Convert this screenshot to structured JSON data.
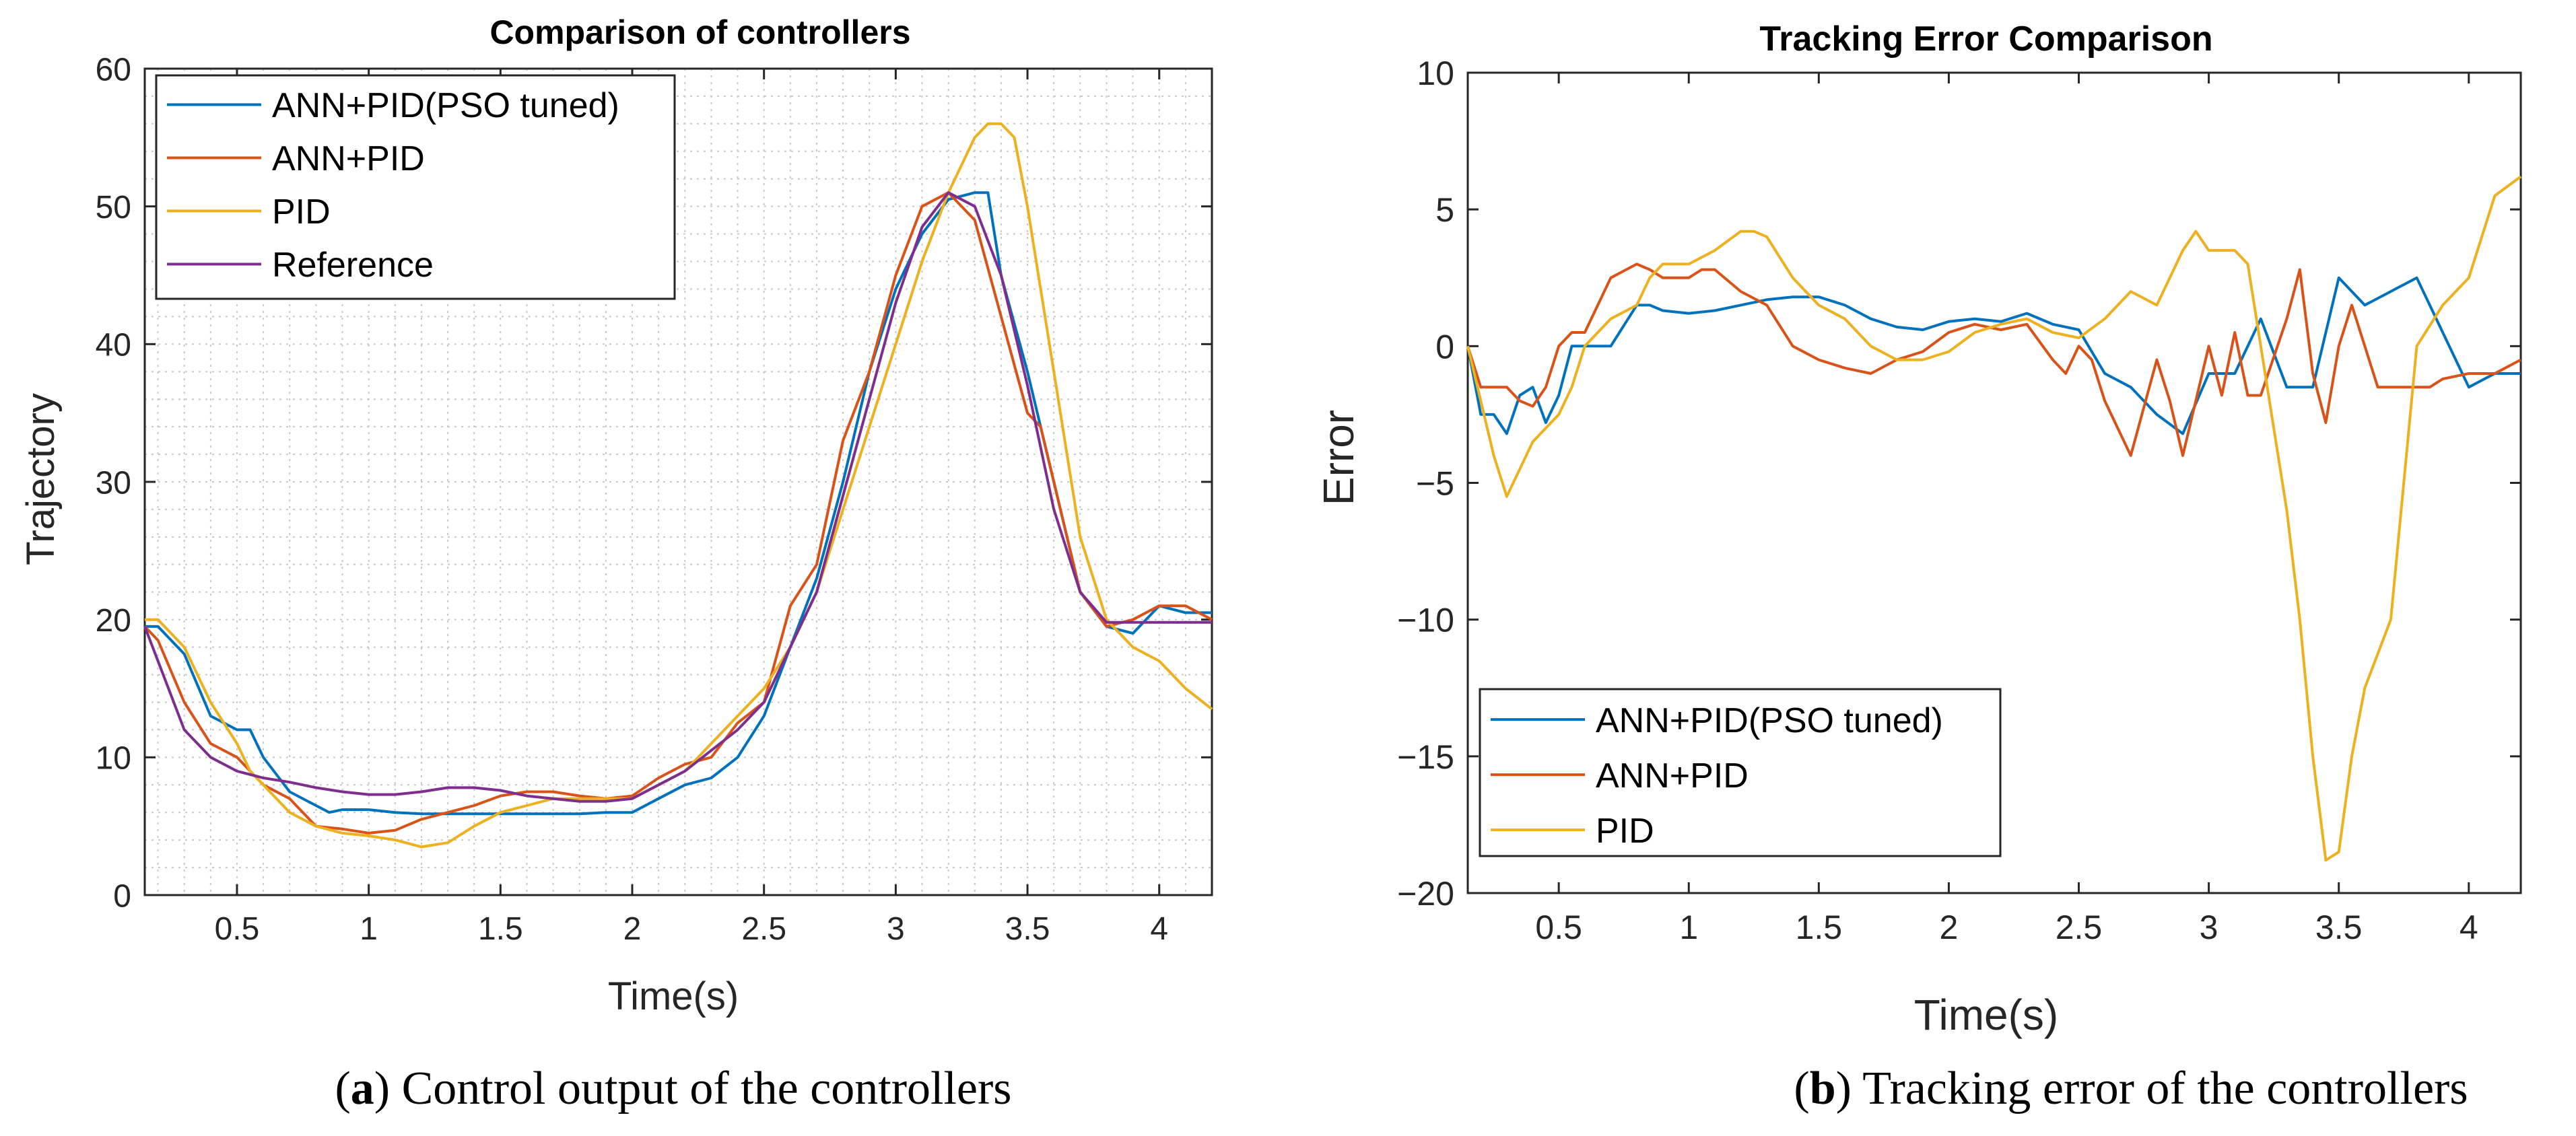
{
  "chart_data": [
    {
      "type": "line",
      "title": "Comparison of controllers",
      "xlabel": "Time(s)",
      "ylabel": "Trajectory",
      "xlim": [
        0.15,
        4.2
      ],
      "ylim": [
        0,
        60
      ],
      "xticks": [
        0.5,
        1,
        1.5,
        2,
        2.5,
        3,
        3.5,
        4
      ],
      "xtick_labels": [
        "0.5",
        "1",
        "1.5",
        "2",
        "2.5",
        "3",
        "3.5",
        "4"
      ],
      "yticks": [
        0,
        10,
        20,
        30,
        40,
        50,
        60
      ],
      "ytick_labels": [
        "0",
        "10",
        "20",
        "30",
        "40",
        "50",
        "60"
      ],
      "grid": "minor-dotted",
      "legend_position": "top-left",
      "caption_letter": "a",
      "caption_text": ") Control output of the controllers",
      "caption_open": "(",
      "series": [
        {
          "name": "ANN+PID(PSO tuned)",
          "color": "#0072BD",
          "x": [
            0.15,
            0.2,
            0.3,
            0.4,
            0.5,
            0.55,
            0.6,
            0.7,
            0.8,
            0.85,
            0.9,
            1.0,
            1.1,
            1.2,
            1.3,
            1.4,
            1.5,
            1.6,
            1.7,
            1.8,
            1.9,
            2.0,
            2.1,
            2.2,
            2.3,
            2.4,
            2.5,
            2.6,
            2.7,
            2.8,
            2.9,
            3.0,
            3.1,
            3.2,
            3.3,
            3.35,
            3.4,
            3.5,
            3.6,
            3.7,
            3.8,
            3.9,
            4.0,
            4.1,
            4.2
          ],
          "y": [
            19.5,
            19.5,
            17.5,
            13,
            12,
            12,
            10,
            7.5,
            6.5,
            6,
            6.2,
            6.2,
            6,
            5.9,
            5.9,
            5.9,
            5.9,
            5.9,
            5.9,
            5.9,
            6,
            6,
            7,
            8,
            8.5,
            10,
            13,
            18,
            23,
            30,
            38,
            44,
            48,
            50.5,
            51,
            51,
            45,
            38,
            30,
            22,
            19.5,
            19,
            21,
            20.5,
            20.5
          ]
        },
        {
          "name": "ANN+PID",
          "color": "#D95319",
          "x": [
            0.15,
            0.2,
            0.3,
            0.4,
            0.5,
            0.6,
            0.7,
            0.8,
            0.9,
            1.0,
            1.1,
            1.2,
            1.3,
            1.4,
            1.5,
            1.6,
            1.7,
            1.8,
            1.9,
            2.0,
            2.1,
            2.2,
            2.3,
            2.4,
            2.5,
            2.6,
            2.7,
            2.8,
            2.9,
            3.0,
            3.1,
            3.2,
            3.3,
            3.4,
            3.5,
            3.55,
            3.6,
            3.7,
            3.8,
            3.9,
            4.0,
            4.1,
            4.2
          ],
          "y": [
            19.5,
            18.5,
            14,
            11,
            10,
            8,
            7,
            5,
            4.8,
            4.5,
            4.7,
            5.5,
            6,
            6.5,
            7.2,
            7.5,
            7.5,
            7.2,
            7,
            7.2,
            8.5,
            9.5,
            10,
            12.5,
            14,
            21,
            24,
            33,
            38,
            45,
            50,
            51,
            49,
            42,
            35,
            34,
            30,
            22,
            19.5,
            20,
            21,
            21,
            20
          ]
        },
        {
          "name": "PID",
          "color": "#EDB120",
          "x": [
            0.15,
            0.2,
            0.3,
            0.4,
            0.5,
            0.55,
            0.6,
            0.7,
            0.8,
            0.9,
            1.0,
            1.1,
            1.2,
            1.3,
            1.4,
            1.5,
            1.6,
            1.7,
            1.8,
            1.9,
            2.0,
            2.1,
            2.2,
            2.3,
            2.4,
            2.5,
            2.6,
            2.7,
            2.8,
            2.9,
            3.0,
            3.1,
            3.2,
            3.3,
            3.35,
            3.4,
            3.45,
            3.5,
            3.6,
            3.7,
            3.8,
            3.9,
            4.0,
            4.1,
            4.2
          ],
          "y": [
            20,
            20,
            18,
            14,
            11,
            9,
            8,
            6,
            5,
            4.5,
            4.3,
            4,
            3.5,
            3.8,
            5,
            6,
            6.5,
            7,
            7,
            7,
            7,
            8,
            9,
            11,
            13,
            15,
            18,
            22,
            28,
            34,
            40,
            46,
            51,
            55,
            56,
            56,
            55,
            50,
            38,
            26,
            20,
            18,
            17,
            15,
            13.5
          ]
        },
        {
          "name": "Reference",
          "color": "#7E2F8E",
          "x": [
            0.15,
            0.2,
            0.3,
            0.4,
            0.5,
            0.6,
            0.7,
            0.8,
            0.9,
            1.0,
            1.1,
            1.2,
            1.3,
            1.4,
            1.5,
            1.6,
            1.7,
            1.8,
            1.9,
            2.0,
            2.1,
            2.2,
            2.3,
            2.4,
            2.5,
            2.6,
            2.7,
            2.8,
            2.9,
            3.0,
            3.1,
            3.2,
            3.3,
            3.4,
            3.5,
            3.6,
            3.7,
            3.8,
            3.9,
            4.0,
            4.1,
            4.2
          ],
          "y": [
            19.5,
            17,
            12,
            10,
            9,
            8.5,
            8.2,
            7.8,
            7.5,
            7.3,
            7.3,
            7.5,
            7.8,
            7.8,
            7.6,
            7.2,
            7,
            6.8,
            6.8,
            7,
            8,
            9,
            10.5,
            12,
            14,
            18,
            22,
            29,
            36,
            43,
            48.5,
            51,
            50,
            45,
            37,
            28,
            22,
            19.8,
            19.8,
            19.8,
            19.8,
            19.8
          ]
        }
      ]
    },
    {
      "type": "line",
      "title": "Tracking Error Comparison",
      "xlabel": "Time(s)",
      "ylabel": "Error",
      "xlim": [
        0.15,
        4.2
      ],
      "ylim": [
        -20,
        10
      ],
      "xticks": [
        0.5,
        1,
        1.5,
        2,
        2.5,
        3,
        3.5,
        4
      ],
      "xtick_labels": [
        "0.5",
        "1",
        "1.5",
        "2",
        "2.5",
        "3",
        "3.5",
        "4"
      ],
      "yticks": [
        -20,
        -15,
        -10,
        -5,
        0,
        5,
        10
      ],
      "ytick_labels": [
        "−20",
        "−15",
        "−10",
        "−5",
        "0",
        "5",
        "10"
      ],
      "grid": "none",
      "legend_position": "bottom-left",
      "caption_letter": "b",
      "caption_text": ") Tracking error of the controllers",
      "caption_open": "(",
      "series": [
        {
          "name": "ANN+PID(PSO tuned)",
          "color": "#0072BD",
          "x": [
            0.15,
            0.2,
            0.25,
            0.3,
            0.35,
            0.4,
            0.45,
            0.5,
            0.55,
            0.6,
            0.7,
            0.8,
            0.85,
            0.9,
            1.0,
            1.1,
            1.2,
            1.3,
            1.4,
            1.5,
            1.6,
            1.7,
            1.8,
            1.9,
            2.0,
            2.1,
            2.2,
            2.3,
            2.4,
            2.5,
            2.6,
            2.7,
            2.8,
            2.9,
            3.0,
            3.1,
            3.2,
            3.3,
            3.4,
            3.5,
            3.6,
            3.7,
            3.8,
            3.9,
            4.0,
            4.1,
            4.2
          ],
          "y": [
            0,
            -2.5,
            -2.5,
            -3.2,
            -1.8,
            -1.5,
            -2.8,
            -1.8,
            0,
            0,
            0,
            1.5,
            1.5,
            1.3,
            1.2,
            1.3,
            1.5,
            1.7,
            1.8,
            1.8,
            1.5,
            1,
            0.7,
            0.6,
            0.9,
            1.0,
            0.9,
            1.2,
            0.8,
            0.6,
            -1,
            -1.5,
            -2.5,
            -3.2,
            -1,
            -1,
            1,
            -1.5,
            -1.5,
            2.5,
            1.5,
            2,
            2.5,
            0.5,
            -1.5,
            -1,
            -1
          ]
        },
        {
          "name": "ANN+PID",
          "color": "#D95319",
          "x": [
            0.15,
            0.2,
            0.3,
            0.35,
            0.4,
            0.45,
            0.5,
            0.55,
            0.6,
            0.7,
            0.8,
            0.85,
            0.9,
            1.0,
            1.05,
            1.1,
            1.2,
            1.3,
            1.4,
            1.5,
            1.6,
            1.7,
            1.8,
            1.9,
            2.0,
            2.1,
            2.2,
            2.3,
            2.4,
            2.45,
            2.5,
            2.55,
            2.6,
            2.7,
            2.8,
            2.85,
            2.9,
            3.0,
            3.05,
            3.1,
            3.15,
            3.2,
            3.3,
            3.35,
            3.4,
            3.45,
            3.5,
            3.55,
            3.6,
            3.65,
            3.7,
            3.8,
            3.85,
            3.9,
            4.0,
            4.1,
            4.2
          ],
          "y": [
            0,
            -1.5,
            -1.5,
            -2,
            -2.2,
            -1.5,
            0,
            0.5,
            0.5,
            2.5,
            3,
            2.8,
            2.5,
            2.5,
            2.8,
            2.8,
            2,
            1.5,
            0,
            -0.5,
            -0.8,
            -1,
            -0.5,
            -0.2,
            0.5,
            0.8,
            0.6,
            0.8,
            -0.5,
            -1,
            0,
            -0.5,
            -2,
            -4,
            -0.5,
            -2,
            -4,
            0,
            -1.8,
            0.5,
            -1.8,
            -1.8,
            1,
            2.8,
            -1,
            -2.8,
            0,
            1.5,
            0,
            -1.5,
            -1.5,
            -1.5,
            -1.5,
            -1.2,
            -1,
            -1,
            -0.5
          ]
        },
        {
          "name": "PID",
          "color": "#EDB120",
          "x": [
            0.15,
            0.2,
            0.25,
            0.3,
            0.35,
            0.4,
            0.5,
            0.55,
            0.6,
            0.65,
            0.7,
            0.8,
            0.85,
            0.9,
            1.0,
            1.1,
            1.2,
            1.25,
            1.3,
            1.4,
            1.5,
            1.6,
            1.7,
            1.8,
            1.9,
            2.0,
            2.1,
            2.2,
            2.3,
            2.4,
            2.5,
            2.6,
            2.7,
            2.8,
            2.9,
            2.95,
            3.0,
            3.1,
            3.15,
            3.2,
            3.3,
            3.35,
            3.4,
            3.45,
            3.5,
            3.55,
            3.6,
            3.7,
            3.75,
            3.8,
            3.9,
            4.0,
            4.1,
            4.2
          ],
          "y": [
            0,
            -2,
            -4,
            -5.5,
            -4.5,
            -3.5,
            -2.5,
            -1.5,
            0,
            0.5,
            1,
            1.5,
            2.5,
            3,
            3,
            3.5,
            4.2,
            4.2,
            4,
            2.5,
            1.5,
            1,
            0,
            -0.5,
            -0.5,
            -0.2,
            0.5,
            0.8,
            1,
            0.5,
            0.3,
            1,
            2,
            1.5,
            3.5,
            4.2,
            3.5,
            3.5,
            3,
            0,
            -6,
            -10,
            -15,
            -18.8,
            -18.5,
            -15,
            -12.5,
            -10,
            -5,
            0,
            1.5,
            2.5,
            5.5,
            6.2
          ]
        }
      ]
    }
  ]
}
